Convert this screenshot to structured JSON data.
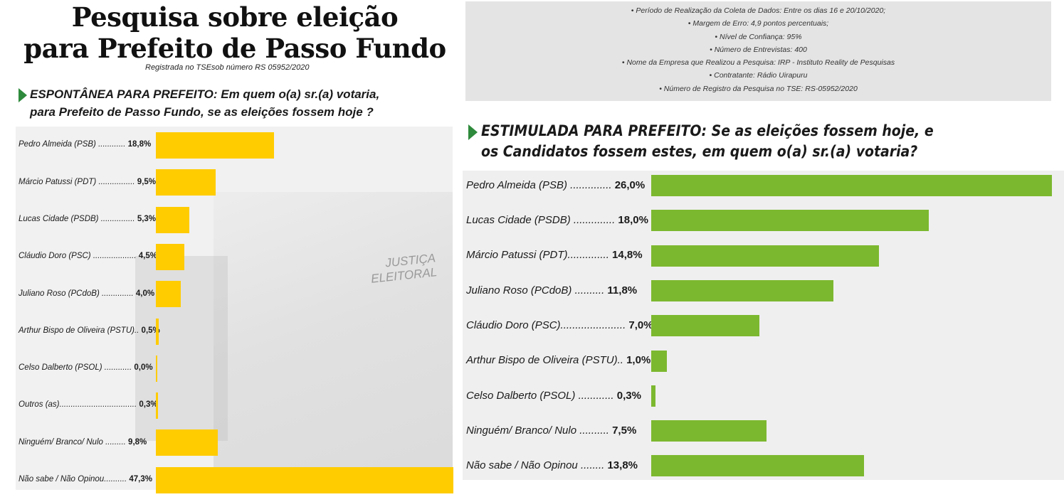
{
  "left": {
    "title_line1": "Pesquisa sobre eleição",
    "title_line2": "para Prefeito de Passo Fundo",
    "registration": "Registrada no TSEsob número RS 05952/2020",
    "question_line1": "ESPONTÂNEA PARA PREFEITO: Em quem o(a) sr.(a) votaria,",
    "question_line2": "para Prefeito de Passo Fundo, se as eleições fossem hoje ?",
    "urn_text_line1": "JUSTIÇA",
    "urn_text_line2": "ELEITORAL",
    "bar_color": "#ffcc00"
  },
  "right": {
    "info_lines": [
      "• Período de Realização da Coleta de Dados: Entre os dias 16 e 20/10/2020;",
      "• Margem de Erro: 4,9 pontos percentuais;",
      "• Nível de Confiança: 95%",
      "• Número de Entrevistas: 400",
      "• Nome da Empresa que Realizou a Pesquisa: IRP - Instituto Reality de Pesquisas",
      "• Contratante: Rádio Uirapuru",
      "• Número de Registro da Pesquisa no TSE: RS-05952/2020"
    ],
    "question_line1": "ESTIMULADA PARA PREFEITO: Se as eleições fossem hoje, e",
    "question_line2": "os Candidatos fossem estes, em quem o(a) sr.(a) votaria?",
    "bar_color": "#7cb82f"
  },
  "chart_data": [
    {
      "type": "bar",
      "orientation": "horizontal",
      "title": "ESPONTÂNEA PARA PREFEITO: Em quem o(a) sr.(a) votaria, para Prefeito de Passo Fundo, se as eleições fossem hoje ?",
      "categories": [
        "Pedro Almeida (PSB)",
        "Márcio Patussi (PDT)",
        "Lucas Cidade (PSDB)",
        "Cláudio Doro (PSC)",
        "Juliano Roso (PCdoB)",
        "Arthur Bispo de Oliveira (PSTU)",
        "Celso Dalberto (PSOL)",
        "Outros (as)",
        "Ninguém/ Branco/ Nulo",
        "Não sabe / Não Opinou"
      ],
      "dot_leaders": [
        " ............",
        " ................",
        " ...............",
        " ...................",
        " ..............",
        "..",
        " ............",
        "..................................",
        " .........",
        ".........."
      ],
      "labels": [
        "18,8%",
        "9,5%",
        "5,3%",
        "4,5%",
        "4,0%",
        "0,5%",
        "0,0%",
        "0,3%",
        "9,8%",
        "47,3%"
      ],
      "values": [
        18.8,
        9.5,
        5.3,
        4.5,
        4.0,
        0.5,
        0.0,
        0.3,
        9.8,
        47.3
      ],
      "unit": "%"
    },
    {
      "type": "bar",
      "orientation": "horizontal",
      "title": "ESTIMULADA PARA PREFEITO: Se as eleições fossem hoje, e os Candidatos fossem estes, em quem o(a) sr.(a) votaria?",
      "categories": [
        "Pedro Almeida (PSB)",
        "Lucas Cidade (PSDB)",
        "Márcio Patussi (PDT)",
        "Juliano Roso (PCdoB)",
        "Cláudio Doro (PSC)",
        "Arthur Bispo de Oliveira (PSTU)",
        "Celso Dalberto (PSOL)",
        "Ninguém/ Branco/ Nulo",
        "Não sabe / Não Opinou"
      ],
      "dot_leaders": [
        " ..............",
        " ..............",
        "..............",
        " ..........",
        "......................",
        "..",
        " ............",
        " ..........",
        " ........"
      ],
      "labels": [
        "26,0%",
        "18,0%",
        "14,8%",
        "11,8%",
        "7,0%",
        "1,0%",
        "0,3%",
        "7,5%",
        "13,8%"
      ],
      "values": [
        26.0,
        18.0,
        14.8,
        11.8,
        7.0,
        1.0,
        0.3,
        7.5,
        13.8
      ],
      "unit": "%"
    }
  ]
}
